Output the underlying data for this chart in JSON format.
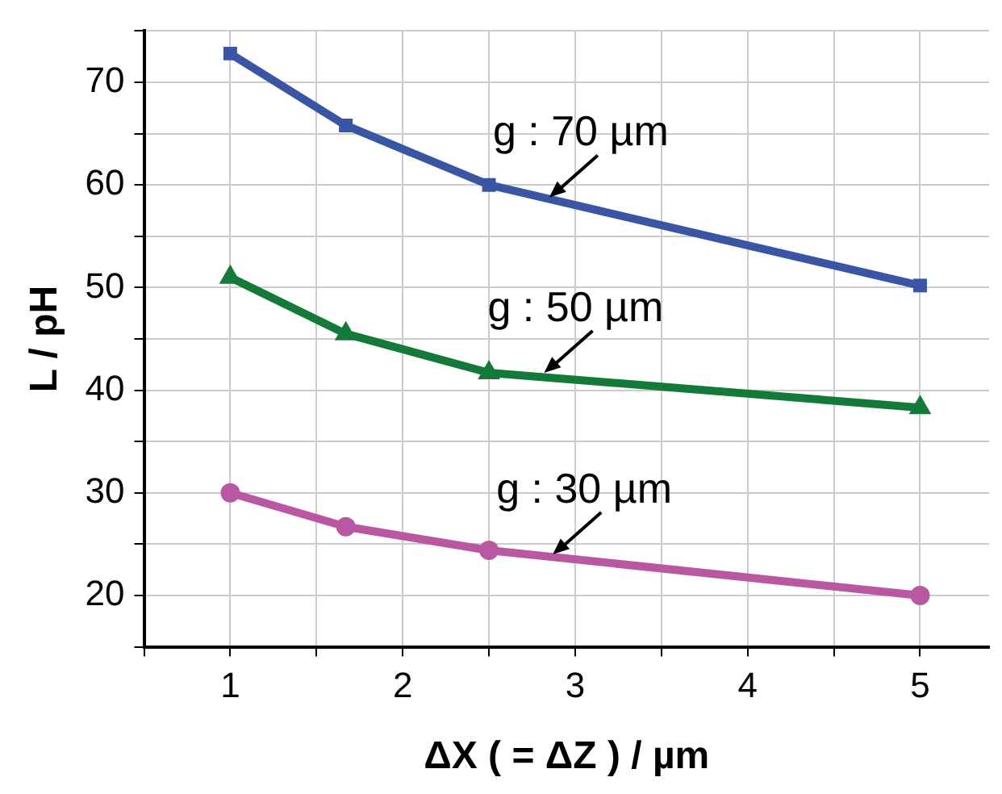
{
  "chart_data": {
    "type": "line",
    "xlabel": "ΔX ( = ΔZ ) / µm",
    "ylabel": "L / pH",
    "x": [
      1,
      1.67,
      2.5,
      5
    ],
    "series": [
      {
        "color": "#3b55a5",
        "marker": "square",
        "values": [
          72.8,
          65.8,
          60,
          50.2
        ]
      },
      {
        "color": "#137a3a",
        "marker": "triangle",
        "values": [
          51,
          45.5,
          41.7,
          38.3
        ]
      },
      {
        "color": "#b957a3",
        "marker": "circle",
        "values": [
          30,
          26.7,
          24.4,
          20
        ]
      }
    ],
    "xlim": [
      0.5,
      5.4
    ],
    "xticks": [
      {
        "value": 0.5,
        "label": null
      },
      1,
      {
        "value": 1.5,
        "label": null
      },
      2,
      {
        "value": 2.5,
        "label": null
      },
      3,
      {
        "value": 3.5,
        "label": null
      },
      4,
      {
        "value": 4.5,
        "label": null
      },
      5
    ],
    "ylim": [
      15,
      75
    ],
    "yticks": [
      {
        "value": 15,
        "label": null
      },
      20,
      {
        "value": 25,
        "label": null
      },
      30,
      {
        "value": 35,
        "label": null
      },
      40,
      {
        "value": 45,
        "label": null
      },
      50,
      {
        "value": 55,
        "label": null
      },
      60,
      {
        "value": 65,
        "label": null
      },
      70,
      {
        "value": 75,
        "label": null
      }
    ],
    "grid": true,
    "legend": false,
    "line_style": "solid",
    "annotations": [
      {
        "text": "g : 70 µm",
        "x": 2.85,
        "y": 58.8
      },
      {
        "text": "g : 50 µm",
        "x": 2.82,
        "y": 41.7
      },
      {
        "text": "g : 30 µm",
        "x": 2.87,
        "y": 24
      }
    ]
  }
}
